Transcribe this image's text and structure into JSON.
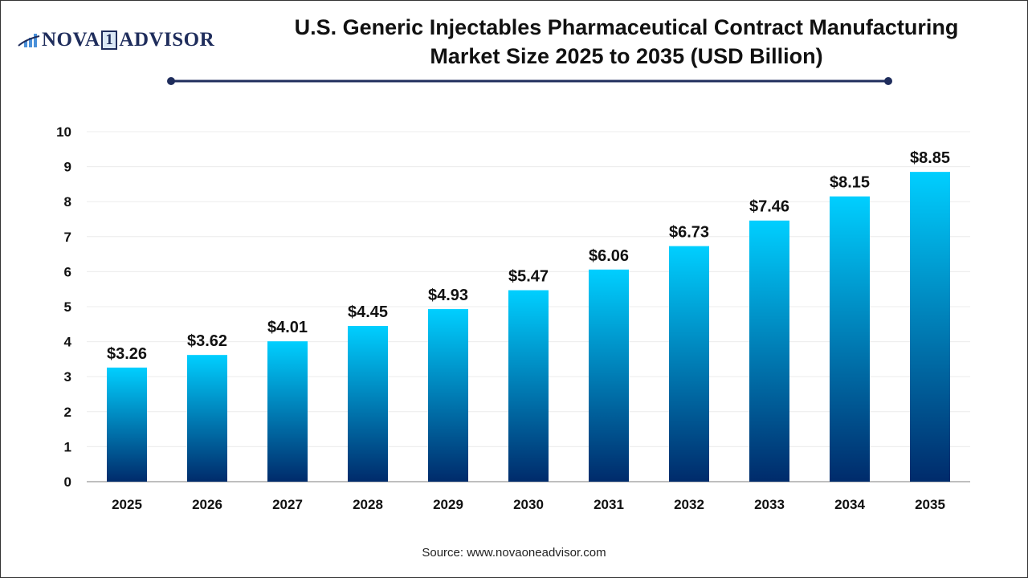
{
  "logo": {
    "text_left": "NOVA",
    "text_one": "1",
    "text_right": "ADVISOR"
  },
  "colors": {
    "bar_top": "#00CFFF",
    "bar_bottom": "#002B6B",
    "divider": "#1f2d5c"
  },
  "source": "Source: www.novaoneadvisor.com",
  "chart_data": {
    "type": "bar",
    "title_line1": "U.S. Generic Injectables Pharmaceutical Contract Manufacturing",
    "title_line2": "Market Size 2025 to 2035 (USD Billion)",
    "categories": [
      "2025",
      "2026",
      "2027",
      "2028",
      "2029",
      "2030",
      "2031",
      "2032",
      "2033",
      "2034",
      "2035"
    ],
    "values": [
      3.26,
      3.62,
      4.01,
      4.45,
      4.93,
      5.47,
      6.06,
      6.73,
      7.46,
      8.15,
      8.85
    ],
    "data_labels": [
      "$3.26",
      "$3.62",
      "$4.01",
      "$4.45",
      "$4.93",
      "$5.47",
      "$6.06",
      "$6.73",
      "$7.46",
      "$8.15",
      "$8.85"
    ],
    "yticks": [
      "0",
      "1",
      "2",
      "3",
      "4",
      "5",
      "6",
      "7",
      "8",
      "9",
      "10"
    ],
    "ylim": [
      0,
      10
    ],
    "grid": true,
    "xlabel": "",
    "ylabel": ""
  }
}
